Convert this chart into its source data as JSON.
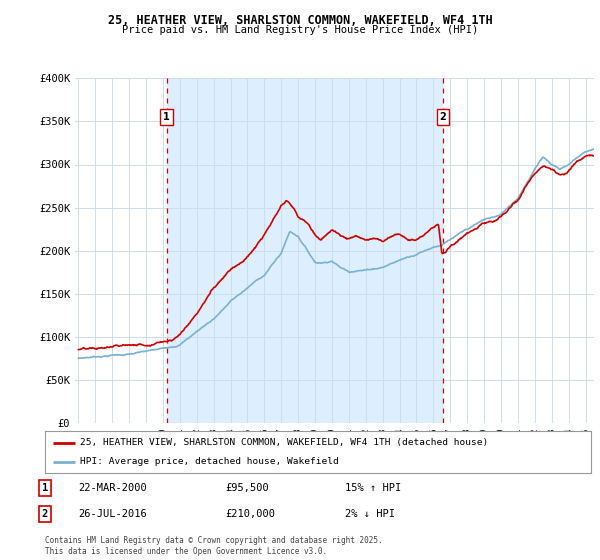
{
  "title": "25, HEATHER VIEW, SHARLSTON COMMON, WAKEFIELD, WF4 1TH",
  "subtitle": "Price paid vs. HM Land Registry's House Price Index (HPI)",
  "ylabel_ticks": [
    "£0",
    "£50K",
    "£100K",
    "£150K",
    "£200K",
    "£250K",
    "£300K",
    "£350K",
    "£400K"
  ],
  "ytick_values": [
    0,
    50000,
    100000,
    150000,
    200000,
    250000,
    300000,
    350000,
    400000
  ],
  "ylim": [
    0,
    400000
  ],
  "xlim_start": 1994.8,
  "xlim_end": 2025.5,
  "marker1_x": 2000.22,
  "marker2_x": 2016.56,
  "line_color_red": "#cc0000",
  "line_color_blue": "#7ab0d4",
  "shade_color": "#ddeeff",
  "legend_label_red": "25, HEATHER VIEW, SHARLSTON COMMON, WAKEFIELD, WF4 1TH (detached house)",
  "legend_label_blue": "HPI: Average price, detached house, Wakefield",
  "annotation1_label": "1",
  "annotation1_date": "22-MAR-2000",
  "annotation1_price": "£95,500",
  "annotation1_hpi": "15% ↑ HPI",
  "annotation2_label": "2",
  "annotation2_date": "26-JUL-2016",
  "annotation2_price": "£210,000",
  "annotation2_hpi": "2% ↓ HPI",
  "footer": "Contains HM Land Registry data © Crown copyright and database right 2025.\nThis data is licensed under the Open Government Licence v3.0.",
  "background_color": "#ffffff",
  "grid_color": "#ccddee",
  "xticks": [
    1995,
    1996,
    1997,
    1998,
    1999,
    2000,
    2001,
    2002,
    2003,
    2004,
    2005,
    2006,
    2007,
    2008,
    2009,
    2010,
    2011,
    2012,
    2013,
    2014,
    2015,
    2016,
    2017,
    2018,
    2019,
    2020,
    2021,
    2022,
    2023,
    2024,
    2025
  ]
}
